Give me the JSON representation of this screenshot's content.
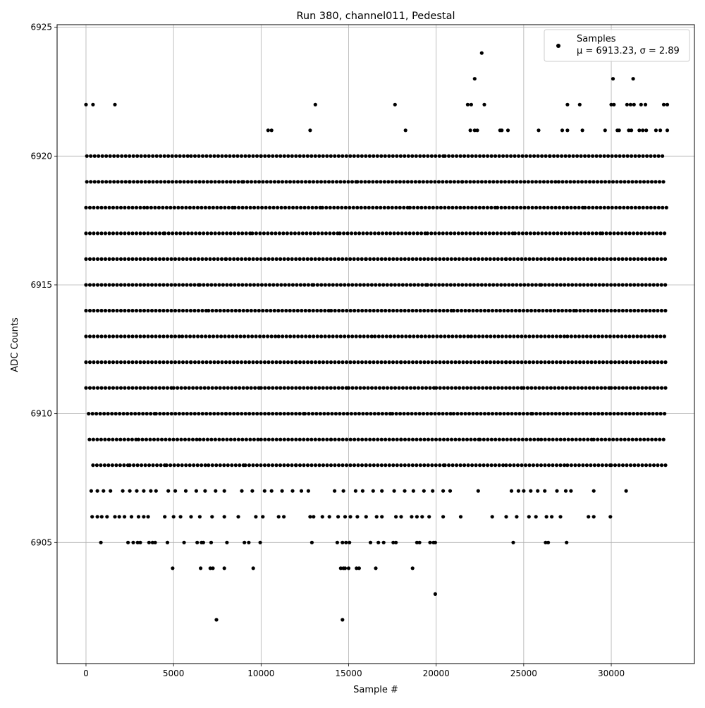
{
  "chart_data": {
    "type": "scatter",
    "title": "Run 380, channel011, Pedestal",
    "xlabel": "Sample #",
    "ylabel": "ADC Counts",
    "xlim": [
      -1650,
      34750
    ],
    "ylim": [
      6900.3,
      6925.1
    ],
    "xticks": [
      0,
      5000,
      10000,
      15000,
      20000,
      25000,
      30000
    ],
    "xtick_labels": [
      "0",
      "5000",
      "10000",
      "15000",
      "20000",
      "25000",
      "30000"
    ],
    "yticks": [
      6905,
      6910,
      6915,
      6920,
      6925
    ],
    "ytick_labels": [
      "6905",
      "6910",
      "6915",
      "6920",
      "6925"
    ],
    "grid": true,
    "legend": {
      "position": "top-right",
      "series_name": "Samples",
      "stats_label": "μ = 6913.23, σ = 2.89"
    },
    "series": [
      {
        "name": "Samples",
        "color": "#000000",
        "x_range": [
          0,
          33280
        ],
        "mean": 6913.23,
        "sigma": 2.89,
        "levels": [
          {
            "y": 6908,
            "x": [
              400,
              2500,
              4600,
              7000,
              9100,
              12000,
              16000,
              20500,
              24000,
              27500,
              30000,
              33200
            ]
          },
          {
            "y": 6909,
            "x": [
              200,
              3000,
              6500,
              10000,
              14000,
              18000,
              22500,
              26000,
              29000,
              33200
            ]
          },
          {
            "y": 6910,
            "x": [
              150,
              4000,
              8000,
              12500,
              17500,
              21000,
              25500,
              29500,
              33200
            ]
          },
          {
            "y": 6911,
            "x": [
              0,
              5000,
              10000,
              15000,
              20000,
              25000,
              30000,
              33200
            ]
          },
          {
            "y": 6912,
            "x": [
              0,
              6000,
              12000,
              18000,
              24000,
              30000,
              33200
            ]
          },
          {
            "y": 6913,
            "x": [
              0,
              5500,
              11000,
              16500,
              22000,
              27500,
              33200
            ]
          },
          {
            "y": 6914,
            "x": [
              0,
              7000,
              14000,
              21000,
              28000,
              33200
            ]
          },
          {
            "y": 6915,
            "x": [
              0,
              6500,
              13000,
              19500,
              26000,
              33200
            ]
          },
          {
            "y": 6916,
            "x": [
              0,
              8000,
              16000,
              24000,
              33200
            ]
          },
          {
            "y": 6917,
            "x": [
              0,
              4500,
              9500,
              14500,
              19500,
              24500,
              29500,
              33200
            ]
          },
          {
            "y": 6918,
            "x": [
              0,
              3500,
              8500,
              13500,
              18500,
              23500,
              28500,
              33200
            ]
          },
          {
            "y": 6919,
            "x": [
              50,
              2500,
              9000,
              15500,
              21500,
              27000,
              33200
            ]
          },
          {
            "y": 6920,
            "x": [
              50,
              6000,
              10000,
              20500,
              26500,
              33100
            ]
          }
        ],
        "points": [
          [
            7450,
            6902
          ],
          [
            14650,
            6902
          ],
          [
            19950,
            6903
          ],
          [
            4950,
            6904
          ],
          [
            6550,
            6904
          ],
          [
            7100,
            6904
          ],
          [
            7250,
            6904
          ],
          [
            7900,
            6904
          ],
          [
            9550,
            6904
          ],
          [
            14550,
            6904
          ],
          [
            14700,
            6904
          ],
          [
            14800,
            6904
          ],
          [
            15000,
            6904
          ],
          [
            15450,
            6904
          ],
          [
            15600,
            6904
          ],
          [
            16550,
            6904
          ],
          [
            18650,
            6904
          ],
          [
            850,
            6905
          ],
          [
            2400,
            6905
          ],
          [
            2700,
            6905
          ],
          [
            2950,
            6905
          ],
          [
            3100,
            6905
          ],
          [
            3600,
            6905
          ],
          [
            3800,
            6905
          ],
          [
            3950,
            6905
          ],
          [
            4650,
            6905
          ],
          [
            5600,
            6905
          ],
          [
            6350,
            6905
          ],
          [
            6600,
            6905
          ],
          [
            6700,
            6905
          ],
          [
            7150,
            6905
          ],
          [
            8050,
            6905
          ],
          [
            9050,
            6905
          ],
          [
            9300,
            6905
          ],
          [
            9950,
            6905
          ],
          [
            12900,
            6905
          ],
          [
            14350,
            6905
          ],
          [
            14650,
            6905
          ],
          [
            14850,
            6905
          ],
          [
            15050,
            6905
          ],
          [
            16250,
            6905
          ],
          [
            16700,
            6905
          ],
          [
            17000,
            6905
          ],
          [
            17550,
            6905
          ],
          [
            17700,
            6905
          ],
          [
            18900,
            6905
          ],
          [
            19050,
            6905
          ],
          [
            19650,
            6905
          ],
          [
            19850,
            6905
          ],
          [
            19950,
            6905
          ],
          [
            24400,
            6905
          ],
          [
            26250,
            6905
          ],
          [
            26400,
            6905
          ],
          [
            27450,
            6905
          ],
          [
            350,
            6906
          ],
          [
            650,
            6906
          ],
          [
            900,
            6906
          ],
          [
            1200,
            6906
          ],
          [
            1650,
            6906
          ],
          [
            1900,
            6906
          ],
          [
            2200,
            6906
          ],
          [
            2600,
            6906
          ],
          [
            3000,
            6906
          ],
          [
            3300,
            6906
          ],
          [
            3550,
            6906
          ],
          [
            4500,
            6906
          ],
          [
            5000,
            6906
          ],
          [
            5400,
            6906
          ],
          [
            6000,
            6906
          ],
          [
            6500,
            6906
          ],
          [
            7200,
            6906
          ],
          [
            7900,
            6906
          ],
          [
            8700,
            6906
          ],
          [
            9700,
            6906
          ],
          [
            10100,
            6906
          ],
          [
            11000,
            6906
          ],
          [
            11300,
            6906
          ],
          [
            12800,
            6906
          ],
          [
            13000,
            6906
          ],
          [
            13500,
            6906
          ],
          [
            13900,
            6906
          ],
          [
            14400,
            6906
          ],
          [
            14800,
            6906
          ],
          [
            15100,
            6906
          ],
          [
            15500,
            6906
          ],
          [
            16000,
            6906
          ],
          [
            16600,
            6906
          ],
          [
            16900,
            6906
          ],
          [
            17700,
            6906
          ],
          [
            18000,
            6906
          ],
          [
            18600,
            6906
          ],
          [
            18900,
            6906
          ],
          [
            19200,
            6906
          ],
          [
            19600,
            6906
          ],
          [
            20400,
            6906
          ],
          [
            21400,
            6906
          ],
          [
            23200,
            6906
          ],
          [
            24000,
            6906
          ],
          [
            24600,
            6906
          ],
          [
            25300,
            6906
          ],
          [
            25700,
            6906
          ],
          [
            26300,
            6906
          ],
          [
            26600,
            6906
          ],
          [
            27100,
            6906
          ],
          [
            28700,
            6906
          ],
          [
            29000,
            6906
          ],
          [
            29950,
            6906
          ],
          [
            300,
            6907
          ],
          [
            650,
            6907
          ],
          [
            1000,
            6907
          ],
          [
            1400,
            6907
          ],
          [
            2100,
            6907
          ],
          [
            2500,
            6907
          ],
          [
            2900,
            6907
          ],
          [
            3300,
            6907
          ],
          [
            3700,
            6907
          ],
          [
            4000,
            6907
          ],
          [
            4700,
            6907
          ],
          [
            5100,
            6907
          ],
          [
            5700,
            6907
          ],
          [
            6300,
            6907
          ],
          [
            6800,
            6907
          ],
          [
            7400,
            6907
          ],
          [
            7900,
            6907
          ],
          [
            8900,
            6907
          ],
          [
            9500,
            6907
          ],
          [
            10200,
            6907
          ],
          [
            10600,
            6907
          ],
          [
            11200,
            6907
          ],
          [
            11800,
            6907
          ],
          [
            12300,
            6907
          ],
          [
            12700,
            6907
          ],
          [
            14200,
            6907
          ],
          [
            14700,
            6907
          ],
          [
            15400,
            6907
          ],
          [
            15800,
            6907
          ],
          [
            16400,
            6907
          ],
          [
            16900,
            6907
          ],
          [
            17600,
            6907
          ],
          [
            18200,
            6907
          ],
          [
            18700,
            6907
          ],
          [
            19300,
            6907
          ],
          [
            19800,
            6907
          ],
          [
            20400,
            6907
          ],
          [
            20800,
            6907
          ],
          [
            22400,
            6907
          ],
          [
            24300,
            6907
          ],
          [
            24700,
            6907
          ],
          [
            25000,
            6907
          ],
          [
            25400,
            6907
          ],
          [
            25800,
            6907
          ],
          [
            26200,
            6907
          ],
          [
            26900,
            6907
          ],
          [
            27400,
            6907
          ],
          [
            27700,
            6907
          ],
          [
            29000,
            6907
          ],
          [
            30850,
            6907
          ],
          [
            0,
            6922
          ],
          [
            400,
            6922
          ],
          [
            1650,
            6922
          ],
          [
            13100,
            6922
          ],
          [
            17650,
            6922
          ],
          [
            21800,
            6922
          ],
          [
            22000,
            6922
          ],
          [
            22750,
            6922
          ],
          [
            27500,
            6922
          ],
          [
            28200,
            6922
          ],
          [
            30000,
            6922
          ],
          [
            30150,
            6922
          ],
          [
            30900,
            6922
          ],
          [
            31100,
            6922
          ],
          [
            31300,
            6922
          ],
          [
            31700,
            6922
          ],
          [
            31950,
            6922
          ],
          [
            33000,
            6922
          ],
          [
            33200,
            6922
          ],
          [
            10400,
            6921
          ],
          [
            10600,
            6921
          ],
          [
            12800,
            6921
          ],
          [
            18250,
            6921
          ],
          [
            21950,
            6921
          ],
          [
            22200,
            6921
          ],
          [
            22350,
            6921
          ],
          [
            23650,
            6921
          ],
          [
            23750,
            6921
          ],
          [
            24100,
            6921
          ],
          [
            25850,
            6921
          ],
          [
            27200,
            6921
          ],
          [
            27500,
            6921
          ],
          [
            28350,
            6921
          ],
          [
            29650,
            6921
          ],
          [
            30350,
            6921
          ],
          [
            30450,
            6921
          ],
          [
            31000,
            6921
          ],
          [
            31150,
            6921
          ],
          [
            31600,
            6921
          ],
          [
            31800,
            6921
          ],
          [
            32000,
            6921
          ],
          [
            32550,
            6921
          ],
          [
            32800,
            6921
          ],
          [
            33200,
            6921
          ],
          [
            22200,
            6923
          ],
          [
            30100,
            6923
          ],
          [
            31250,
            6923
          ],
          [
            22600,
            6924
          ]
        ]
      }
    ]
  }
}
